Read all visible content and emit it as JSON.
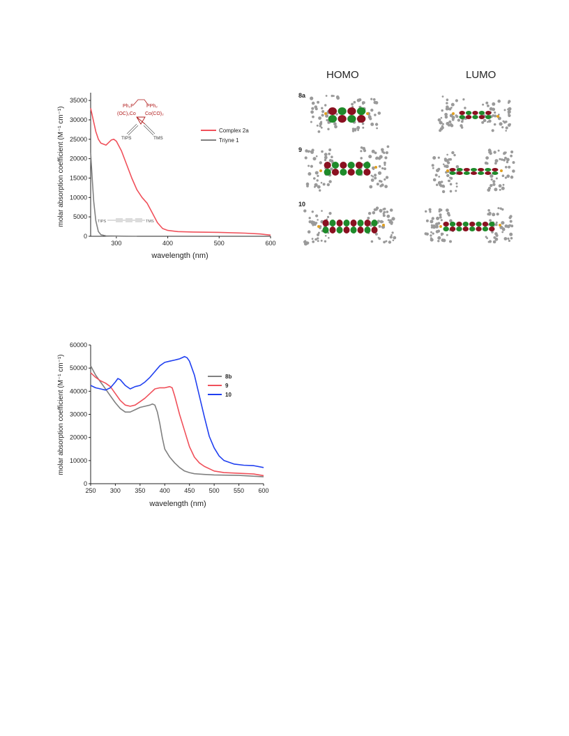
{
  "chart_data": [
    {
      "type": "line",
      "xlabel": "wavelength (nm)",
      "ylabel": "molar absorption coefficient (M⁻¹ cm⁻¹)",
      "xlim": [
        250,
        600
      ],
      "ylim": [
        0,
        37000
      ],
      "xticks": [
        300,
        400,
        500,
        600
      ],
      "yticks": [
        0,
        5000,
        10000,
        15000,
        20000,
        25000,
        30000,
        35000
      ],
      "legend": "right",
      "series": [
        {
          "name": "Complex 2a",
          "color": "#f0505a",
          "x": [
            250,
            255,
            260,
            265,
            270,
            280,
            290,
            295,
            300,
            310,
            320,
            330,
            340,
            350,
            360,
            370,
            380,
            390,
            400,
            420,
            450,
            500,
            550,
            580,
            600
          ],
          "y": [
            33000,
            30000,
            27000,
            25000,
            24000,
            23500,
            24800,
            25000,
            24500,
            22000,
            18500,
            15000,
            12000,
            10000,
            8500,
            6000,
            3500,
            2000,
            1500,
            1200,
            1100,
            1000,
            800,
            600,
            300
          ]
        },
        {
          "name": "Triyne 1",
          "color": "#808080",
          "x": [
            250,
            253,
            256,
            260,
            265,
            270,
            280,
            300,
            320,
            340
          ],
          "y": [
            21500,
            15000,
            9000,
            4000,
            1200,
            400,
            100,
            60,
            20,
            0
          ]
        }
      ],
      "inset_labels": {
        "ppha": "Ph₂P",
        "pphb": "PPh₂",
        "co_left": "(OC)₂Co",
        "co_right": "Co(CO)₂",
        "tips": "TIPS",
        "tms": "TMS",
        "tips2": "TIPS",
        "tms2": "TMS"
      }
    },
    {
      "type": "line",
      "xlabel": "wavelength (nm)",
      "ylabel": "molar absorption coefficient (M⁻¹ cm⁻¹)",
      "xlim": [
        250,
        600
      ],
      "ylim": [
        0,
        60000
      ],
      "xticks": [
        250,
        300,
        350,
        400,
        450,
        500,
        550,
        600
      ],
      "yticks": [
        0,
        10000,
        20000,
        30000,
        40000,
        50000,
        60000
      ],
      "legend": "right",
      "series": [
        {
          "name": "8b",
          "color": "#808080",
          "x": [
            250,
            260,
            270,
            280,
            290,
            300,
            310,
            320,
            330,
            340,
            350,
            360,
            370,
            375,
            380,
            385,
            390,
            395,
            400,
            410,
            420,
            430,
            440,
            450,
            460,
            480,
            500,
            550,
            600
          ],
          "y": [
            51000,
            47000,
            44000,
            41000,
            38000,
            35000,
            32500,
            31000,
            31000,
            32000,
            33000,
            33500,
            34000,
            34500,
            34000,
            31000,
            26000,
            20000,
            15000,
            11500,
            9000,
            7000,
            5500,
            4800,
            4300,
            4000,
            3800,
            3600,
            3000
          ]
        },
        {
          "name": "9",
          "color": "#f0505a",
          "x": [
            250,
            260,
            270,
            280,
            290,
            300,
            310,
            320,
            330,
            340,
            350,
            360,
            370,
            380,
            390,
            400,
            410,
            415,
            420,
            430,
            440,
            450,
            460,
            470,
            480,
            500,
            520,
            550,
            580,
            600
          ],
          "y": [
            48000,
            46000,
            44500,
            43500,
            42000,
            39000,
            36000,
            34000,
            33500,
            34000,
            35500,
            37000,
            39000,
            41000,
            41500,
            41500,
            42000,
            41500,
            38000,
            30000,
            23000,
            16000,
            11500,
            9000,
            7500,
            5500,
            4800,
            4500,
            4200,
            3500
          ]
        },
        {
          "name": "10",
          "color": "#1f3ff0",
          "x": [
            250,
            260,
            270,
            280,
            290,
            300,
            305,
            310,
            320,
            330,
            340,
            350,
            360,
            370,
            380,
            390,
            400,
            410,
            420,
            430,
            440,
            445,
            450,
            460,
            470,
            480,
            490,
            500,
            510,
            520,
            540,
            560,
            580,
            600
          ],
          "y": [
            42500,
            41500,
            41000,
            40500,
            41500,
            44000,
            45500,
            45000,
            42500,
            41000,
            42000,
            42500,
            44000,
            46000,
            48500,
            51000,
            52500,
            53000,
            53500,
            54000,
            55000,
            54500,
            53000,
            47000,
            38000,
            29000,
            20500,
            15500,
            12000,
            10000,
            8500,
            8000,
            7800,
            7000
          ]
        }
      ]
    }
  ],
  "orbitals": {
    "headers": [
      "HOMO",
      "LUMO"
    ],
    "rows": [
      "8a",
      "9",
      "10"
    ],
    "colors": {
      "pos": "#1e8a2a",
      "neg": "#8a1020",
      "atom": "#9a9a9a",
      "hetero": "#e0a020"
    }
  }
}
